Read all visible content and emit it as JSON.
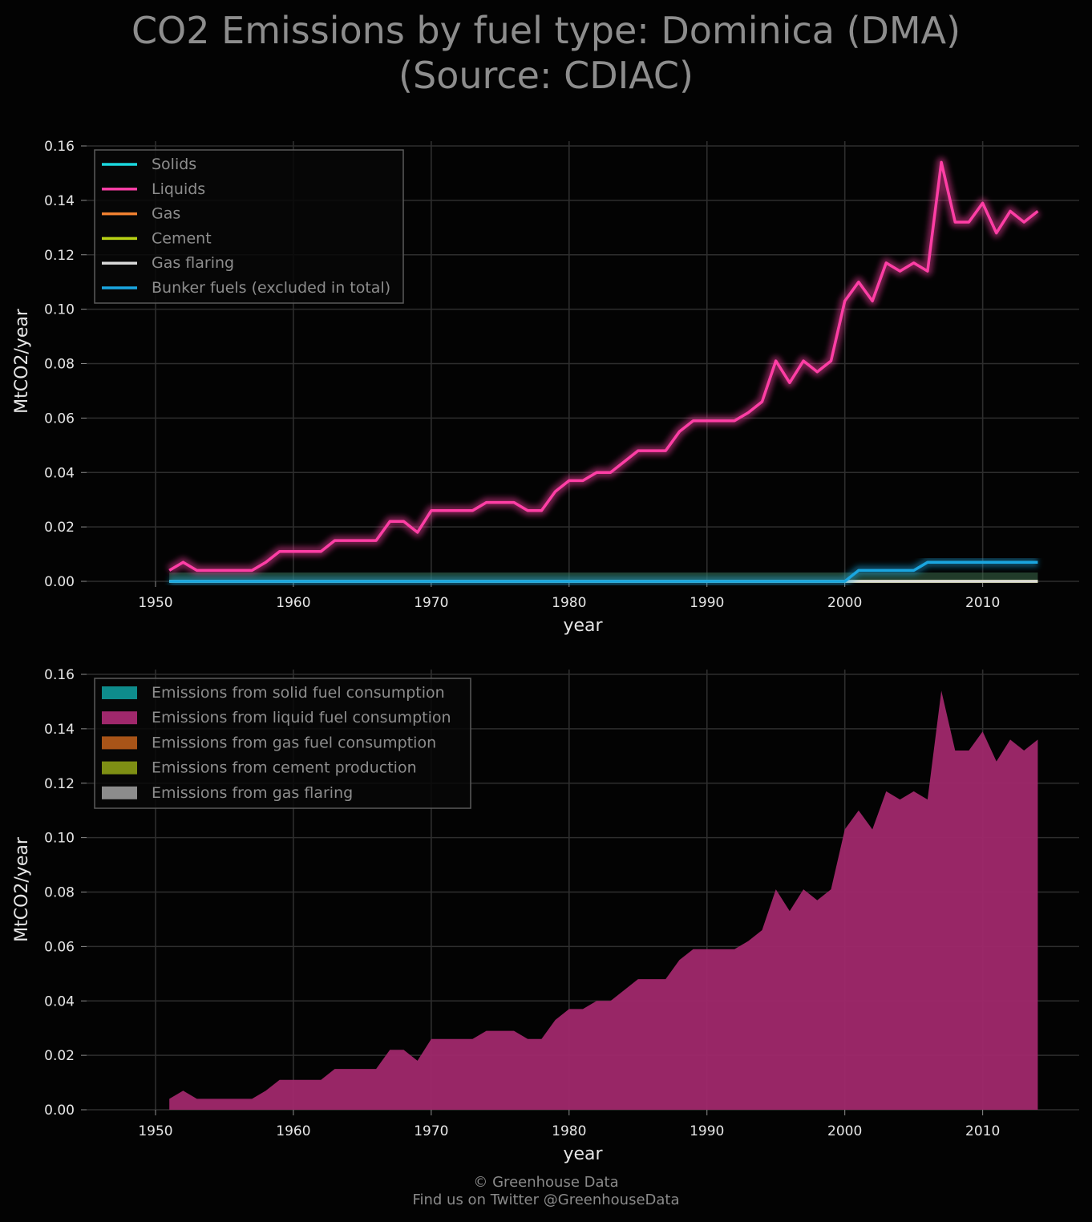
{
  "title_line1": "CO2 Emissions by fuel type: Dominica (DMA)",
  "title_line2": "(Source: CDIAC)",
  "credit_line1": "© Greenhouse Data",
  "credit_line2": "Find us on Twitter @GreenhouseData",
  "colors": {
    "background": "#030303",
    "grid": "#2e2e2e",
    "text": "#e6e6e6",
    "muted_text": "#8d8d8d",
    "solids": "#1ad7de",
    "liquids": "#ff3ea5",
    "gas": "#f08030",
    "cement": "#b8d214",
    "gas_flaring": "#d9d9d9",
    "bunker": "#1aa6e0",
    "liquid_fill": "#a0286c"
  },
  "chart_data": [
    {
      "type": "line",
      "xlabel": "year",
      "ylabel": "MtCO2/year",
      "xlim": [
        1945,
        2017
      ],
      "ylim": [
        0,
        0.16
      ],
      "xticks": [
        "1950",
        "1960",
        "1970",
        "1980",
        "1990",
        "2000",
        "2010"
      ],
      "yticks": [
        "0.00",
        "0.02",
        "0.04",
        "0.06",
        "0.08",
        "0.10",
        "0.12",
        "0.14",
        "0.16"
      ],
      "grid": true,
      "legend_position": "top-left",
      "x": [
        1951,
        1952,
        1953,
        1954,
        1955,
        1956,
        1957,
        1958,
        1959,
        1960,
        1961,
        1962,
        1963,
        1964,
        1965,
        1966,
        1967,
        1968,
        1969,
        1970,
        1971,
        1972,
        1973,
        1974,
        1975,
        1976,
        1977,
        1978,
        1979,
        1980,
        1981,
        1982,
        1983,
        1984,
        1985,
        1986,
        1987,
        1988,
        1989,
        1990,
        1991,
        1992,
        1993,
        1994,
        1995,
        1996,
        1997,
        1998,
        1999,
        2000,
        2001,
        2002,
        2003,
        2004,
        2005,
        2006,
        2007,
        2008,
        2009,
        2010,
        2011,
        2012,
        2013,
        2014
      ],
      "series": [
        {
          "name": "Solids",
          "color_key": "solids",
          "values": [
            0,
            0,
            0,
            0,
            0,
            0,
            0,
            0,
            0,
            0,
            0,
            0,
            0,
            0,
            0,
            0,
            0,
            0,
            0,
            0,
            0,
            0,
            0,
            0,
            0,
            0,
            0,
            0,
            0,
            0,
            0,
            0,
            0,
            0,
            0,
            0,
            0,
            0,
            0,
            0,
            0,
            0,
            0,
            0,
            0,
            0,
            0,
            0,
            0,
            0,
            0,
            0,
            0,
            0,
            0,
            0,
            0,
            0,
            0,
            0,
            0,
            0,
            0,
            0
          ]
        },
        {
          "name": "Liquids",
          "color_key": "liquids",
          "values": [
            0.004,
            0.007,
            0.004,
            0.004,
            0.004,
            0.004,
            0.004,
            0.007,
            0.011,
            0.011,
            0.011,
            0.011,
            0.015,
            0.015,
            0.015,
            0.015,
            0.022,
            0.022,
            0.018,
            0.026,
            0.026,
            0.026,
            0.026,
            0.029,
            0.029,
            0.029,
            0.026,
            0.026,
            0.033,
            0.037,
            0.037,
            0.04,
            0.04,
            0.044,
            0.048,
            0.048,
            0.048,
            0.055,
            0.059,
            0.059,
            0.059,
            0.059,
            0.062,
            0.066,
            0.081,
            0.073,
            0.081,
            0.077,
            0.081,
            0.103,
            0.11,
            0.103,
            0.117,
            0.114,
            0.117,
            0.114,
            0.154,
            0.132,
            0.132,
            0.139,
            0.128,
            0.136,
            0.132,
            0.136
          ]
        },
        {
          "name": "Gas",
          "color_key": "gas",
          "values": [
            0,
            0,
            0,
            0,
            0,
            0,
            0,
            0,
            0,
            0,
            0,
            0,
            0,
            0,
            0,
            0,
            0,
            0,
            0,
            0,
            0,
            0,
            0,
            0,
            0,
            0,
            0,
            0,
            0,
            0,
            0,
            0,
            0,
            0,
            0,
            0,
            0,
            0,
            0,
            0,
            0,
            0,
            0,
            0,
            0,
            0,
            0,
            0,
            0,
            0,
            0,
            0,
            0,
            0,
            0,
            0,
            0,
            0,
            0,
            0,
            0,
            0,
            0,
            0
          ]
        },
        {
          "name": "Cement",
          "color_key": "cement",
          "values": [
            0,
            0,
            0,
            0,
            0,
            0,
            0,
            0,
            0,
            0,
            0,
            0,
            0,
            0,
            0,
            0,
            0,
            0,
            0,
            0,
            0,
            0,
            0,
            0,
            0,
            0,
            0,
            0,
            0,
            0,
            0,
            0,
            0,
            0,
            0,
            0,
            0,
            0,
            0,
            0,
            0,
            0,
            0,
            0,
            0,
            0,
            0,
            0,
            0,
            0,
            0,
            0,
            0,
            0,
            0,
            0,
            0,
            0,
            0,
            0,
            0,
            0,
            0,
            0
          ]
        },
        {
          "name": "Gas flaring",
          "color_key": "gas_flaring",
          "values": [
            0,
            0,
            0,
            0,
            0,
            0,
            0,
            0,
            0,
            0,
            0,
            0,
            0,
            0,
            0,
            0,
            0,
            0,
            0,
            0,
            0,
            0,
            0,
            0,
            0,
            0,
            0,
            0,
            0,
            0,
            0,
            0,
            0,
            0,
            0,
            0,
            0,
            0,
            0,
            0,
            0,
            0,
            0,
            0,
            0,
            0,
            0,
            0,
            0,
            0,
            0,
            0,
            0,
            0,
            0,
            0,
            0,
            0,
            0,
            0,
            0,
            0,
            0,
            0
          ]
        },
        {
          "name": "Bunker fuels (excluded in total)",
          "color_key": "bunker",
          "values": [
            0,
            0,
            0,
            0,
            0,
            0,
            0,
            0,
            0,
            0,
            0,
            0,
            0,
            0,
            0,
            0,
            0,
            0,
            0,
            0,
            0,
            0,
            0,
            0,
            0,
            0,
            0,
            0,
            0,
            0,
            0,
            0,
            0,
            0,
            0,
            0,
            0,
            0,
            0,
            0,
            0,
            0,
            0,
            0,
            0,
            0,
            0,
            0,
            0,
            0,
            0.004,
            0.004,
            0.004,
            0.004,
            0.004,
            0.007,
            0.007,
            0.007,
            0.007,
            0.007,
            0.007,
            0.007,
            0.007,
            0.007
          ]
        }
      ]
    },
    {
      "type": "area",
      "xlabel": "year",
      "ylabel": "MtCO2/year",
      "xlim": [
        1945,
        2017
      ],
      "ylim": [
        0,
        0.16
      ],
      "xticks": [
        "1950",
        "1960",
        "1970",
        "1980",
        "1990",
        "2000",
        "2010"
      ],
      "yticks": [
        "0.00",
        "0.02",
        "0.04",
        "0.06",
        "0.08",
        "0.10",
        "0.12",
        "0.14",
        "0.16"
      ],
      "grid": true,
      "stacked": true,
      "legend_position": "top-left",
      "x": [
        1951,
        1952,
        1953,
        1954,
        1955,
        1956,
        1957,
        1958,
        1959,
        1960,
        1961,
        1962,
        1963,
        1964,
        1965,
        1966,
        1967,
        1968,
        1969,
        1970,
        1971,
        1972,
        1973,
        1974,
        1975,
        1976,
        1977,
        1978,
        1979,
        1980,
        1981,
        1982,
        1983,
        1984,
        1985,
        1986,
        1987,
        1988,
        1989,
        1990,
        1991,
        1992,
        1993,
        1994,
        1995,
        1996,
        1997,
        1998,
        1999,
        2000,
        2001,
        2002,
        2003,
        2004,
        2005,
        2006,
        2007,
        2008,
        2009,
        2010,
        2011,
        2012,
        2013,
        2014
      ],
      "series": [
        {
          "name": "Emissions from solid fuel consumption",
          "color": "#0e8c8c",
          "values": [
            0,
            0,
            0,
            0,
            0,
            0,
            0,
            0,
            0,
            0,
            0,
            0,
            0,
            0,
            0,
            0,
            0,
            0,
            0,
            0,
            0,
            0,
            0,
            0,
            0,
            0,
            0,
            0,
            0,
            0,
            0,
            0,
            0,
            0,
            0,
            0,
            0,
            0,
            0,
            0,
            0,
            0,
            0,
            0,
            0,
            0,
            0,
            0,
            0,
            0,
            0,
            0,
            0,
            0,
            0,
            0,
            0,
            0,
            0,
            0,
            0,
            0,
            0,
            0
          ]
        },
        {
          "name": "Emissions from liquid fuel consumption",
          "color": "#a0286c",
          "values": [
            0.004,
            0.007,
            0.004,
            0.004,
            0.004,
            0.004,
            0.004,
            0.007,
            0.011,
            0.011,
            0.011,
            0.011,
            0.015,
            0.015,
            0.015,
            0.015,
            0.022,
            0.022,
            0.018,
            0.026,
            0.026,
            0.026,
            0.026,
            0.029,
            0.029,
            0.029,
            0.026,
            0.026,
            0.033,
            0.037,
            0.037,
            0.04,
            0.04,
            0.044,
            0.048,
            0.048,
            0.048,
            0.055,
            0.059,
            0.059,
            0.059,
            0.059,
            0.062,
            0.066,
            0.081,
            0.073,
            0.081,
            0.077,
            0.081,
            0.103,
            0.11,
            0.103,
            0.117,
            0.114,
            0.117,
            0.114,
            0.154,
            0.132,
            0.132,
            0.139,
            0.128,
            0.136,
            0.132,
            0.136
          ]
        },
        {
          "name": "Emissions from gas fuel consumption",
          "color": "#a85418",
          "values": [
            0,
            0,
            0,
            0,
            0,
            0,
            0,
            0,
            0,
            0,
            0,
            0,
            0,
            0,
            0,
            0,
            0,
            0,
            0,
            0,
            0,
            0,
            0,
            0,
            0,
            0,
            0,
            0,
            0,
            0,
            0,
            0,
            0,
            0,
            0,
            0,
            0,
            0,
            0,
            0,
            0,
            0,
            0,
            0,
            0,
            0,
            0,
            0,
            0,
            0,
            0,
            0,
            0,
            0,
            0,
            0,
            0,
            0,
            0,
            0,
            0,
            0,
            0,
            0
          ]
        },
        {
          "name": "Emissions from cement production",
          "color": "#7e8f14",
          "values": [
            0,
            0,
            0,
            0,
            0,
            0,
            0,
            0,
            0,
            0,
            0,
            0,
            0,
            0,
            0,
            0,
            0,
            0,
            0,
            0,
            0,
            0,
            0,
            0,
            0,
            0,
            0,
            0,
            0,
            0,
            0,
            0,
            0,
            0,
            0,
            0,
            0,
            0,
            0,
            0,
            0,
            0,
            0,
            0,
            0,
            0,
            0,
            0,
            0,
            0,
            0,
            0,
            0,
            0,
            0,
            0,
            0,
            0,
            0,
            0,
            0,
            0,
            0,
            0
          ]
        },
        {
          "name": "Emissions from gas flaring",
          "color": "#8c8c8c",
          "values": [
            0,
            0,
            0,
            0,
            0,
            0,
            0,
            0,
            0,
            0,
            0,
            0,
            0,
            0,
            0,
            0,
            0,
            0,
            0,
            0,
            0,
            0,
            0,
            0,
            0,
            0,
            0,
            0,
            0,
            0,
            0,
            0,
            0,
            0,
            0,
            0,
            0,
            0,
            0,
            0,
            0,
            0,
            0,
            0,
            0,
            0,
            0,
            0,
            0,
            0,
            0,
            0,
            0,
            0,
            0,
            0,
            0,
            0,
            0,
            0,
            0,
            0,
            0,
            0
          ]
        }
      ]
    }
  ]
}
